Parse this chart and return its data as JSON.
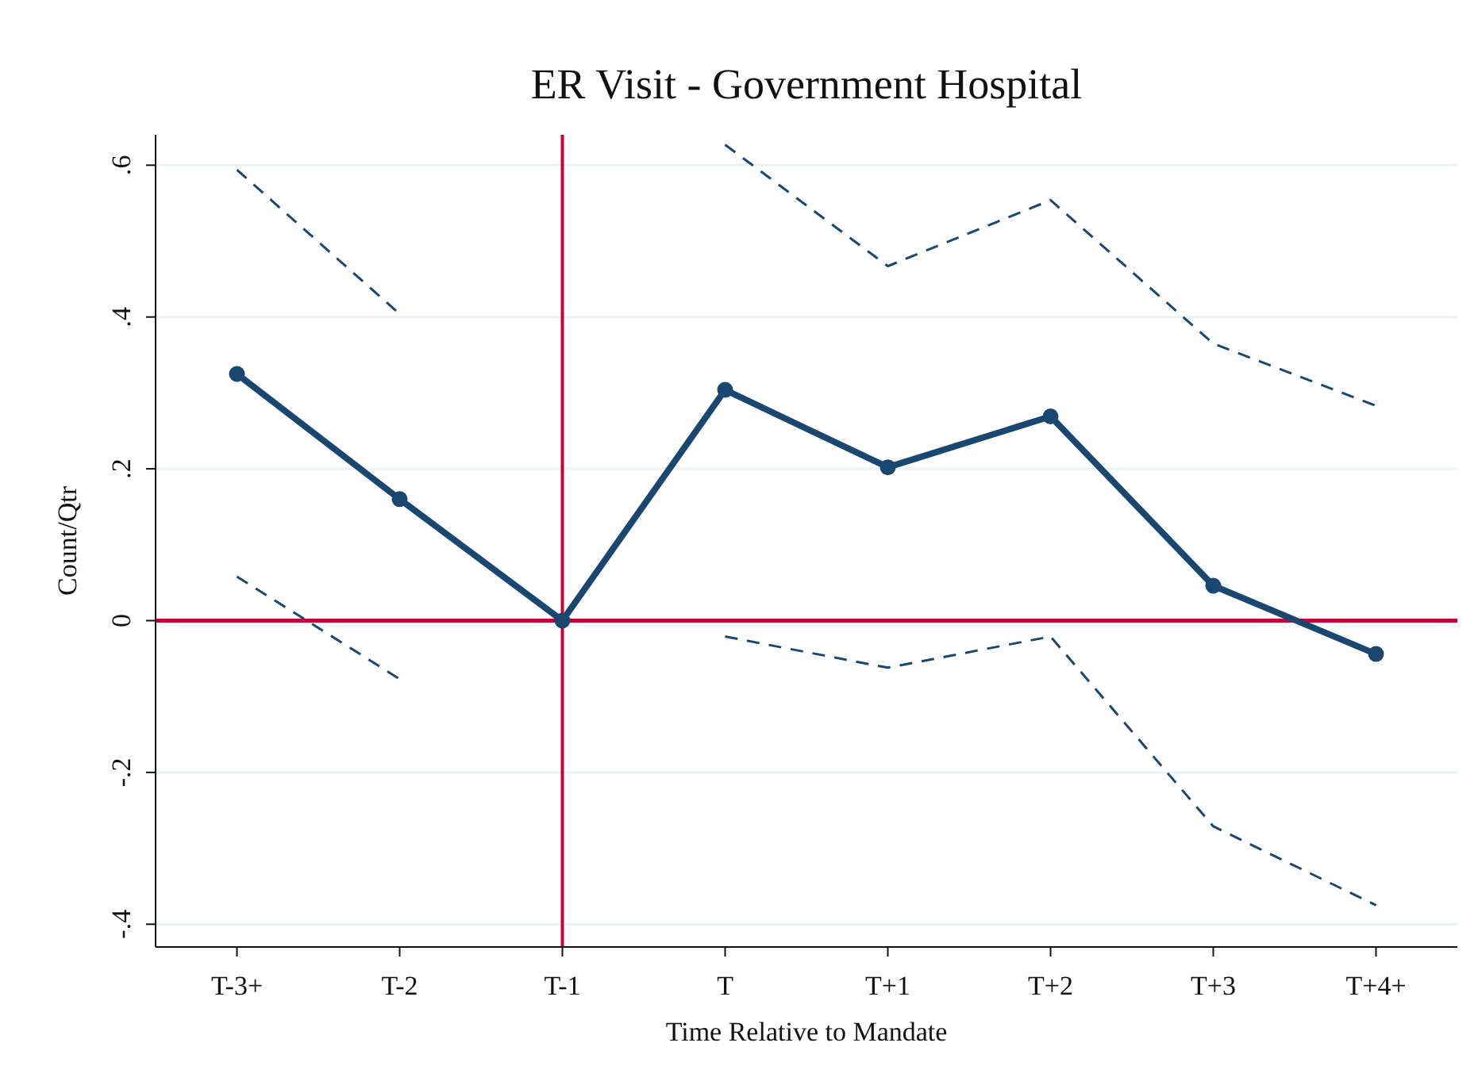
{
  "chart_data": {
    "type": "line",
    "title": "ER Visit - Government Hospital",
    "xlabel": "Time Relative to Mandate",
    "ylabel": "Count/Qtr",
    "categories": [
      "T-3+",
      "T-2",
      "T-1",
      "T",
      "T+1",
      "T+2",
      "T+3",
      "T+4+"
    ],
    "series": [
      {
        "color": "#1a476f",
        "marker": "circle",
        "line_style": "solid",
        "values": [
          0.325,
          0.16,
          0,
          0.304,
          0.202,
          0.269,
          0.046,
          -0.044
        ]
      },
      {
        "color": "#1a476f",
        "marker": "none",
        "line_style": "dashed",
        "values": [
          0.594,
          0.404,
          null,
          0.627,
          0.467,
          0.554,
          0.365,
          0.283
        ]
      },
      {
        "color": "#1a476f",
        "marker": "none",
        "line_style": "dashed",
        "values": [
          0.058,
          -0.077,
          null,
          -0.021,
          -0.062,
          -0.021,
          -0.271,
          -0.375
        ]
      }
    ],
    "ylim": [
      -0.43,
      0.64
    ],
    "yticks": [
      {
        "value": -0.4,
        "label": "-.4"
      },
      {
        "value": -0.2,
        "label": "-.2"
      },
      0,
      {
        "value": 0.2,
        "label": ".2"
      },
      {
        "value": 0.4,
        "label": ".4"
      },
      {
        "value": 0.6,
        "label": ".6"
      }
    ],
    "ref_lines": [
      {
        "axis": "y",
        "value": 0,
        "color": "#c10534"
      },
      {
        "axis": "x",
        "value": "T-1",
        "color": "#c10534"
      }
    ],
    "grid": "y"
  }
}
